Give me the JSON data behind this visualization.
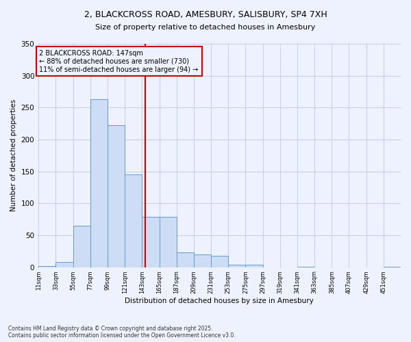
{
  "title_line1": "2, BLACKCROSS ROAD, AMESBURY, SALISBURY, SP4 7XH",
  "title_line2": "Size of property relative to detached houses in Amesbury",
  "xlabel": "Distribution of detached houses by size in Amesbury",
  "ylabel": "Number of detached properties",
  "footer_line1": "Contains HM Land Registry data © Crown copyright and database right 2025.",
  "footer_line2": "Contains public sector information licensed under the Open Government Licence v3.0.",
  "annotation_line1": "2 BLACKCROSS ROAD: 147sqm",
  "annotation_line2": "← 88% of detached houses are smaller (730)",
  "annotation_line3": "11% of semi-detached houses are larger (94) →",
  "bin_edges": [
    11,
    33,
    55,
    77,
    99,
    121,
    143,
    165,
    187,
    209,
    231,
    253,
    275,
    297,
    319,
    341,
    363,
    385,
    407,
    429,
    451,
    473
  ],
  "bar_heights": [
    2,
    8,
    65,
    263,
    222,
    145,
    79,
    79,
    23,
    20,
    18,
    4,
    4,
    0,
    0,
    1,
    0,
    0,
    0,
    0,
    1
  ],
  "bar_color": "#ccddf5",
  "bar_edge_color": "#6699cc",
  "vline_x": 147,
  "vline_color": "#cc0000",
  "annotation_box_color": "#cc0000",
  "background_color": "#eef2ff",
  "ylim": [
    0,
    350
  ],
  "yticks": [
    0,
    50,
    100,
    150,
    200,
    250,
    300,
    350
  ],
  "grid_color": "#c8cfe8",
  "tick_labels": [
    "11sqm",
    "33sqm",
    "55sqm",
    "77sqm",
    "99sqm",
    "121sqm",
    "143sqm",
    "165sqm",
    "187sqm",
    "209sqm",
    "231sqm",
    "253sqm",
    "275sqm",
    "297sqm",
    "319sqm",
    "341sqm",
    "363sqm",
    "385sqm",
    "407sqm",
    "429sqm",
    "451sqm"
  ]
}
